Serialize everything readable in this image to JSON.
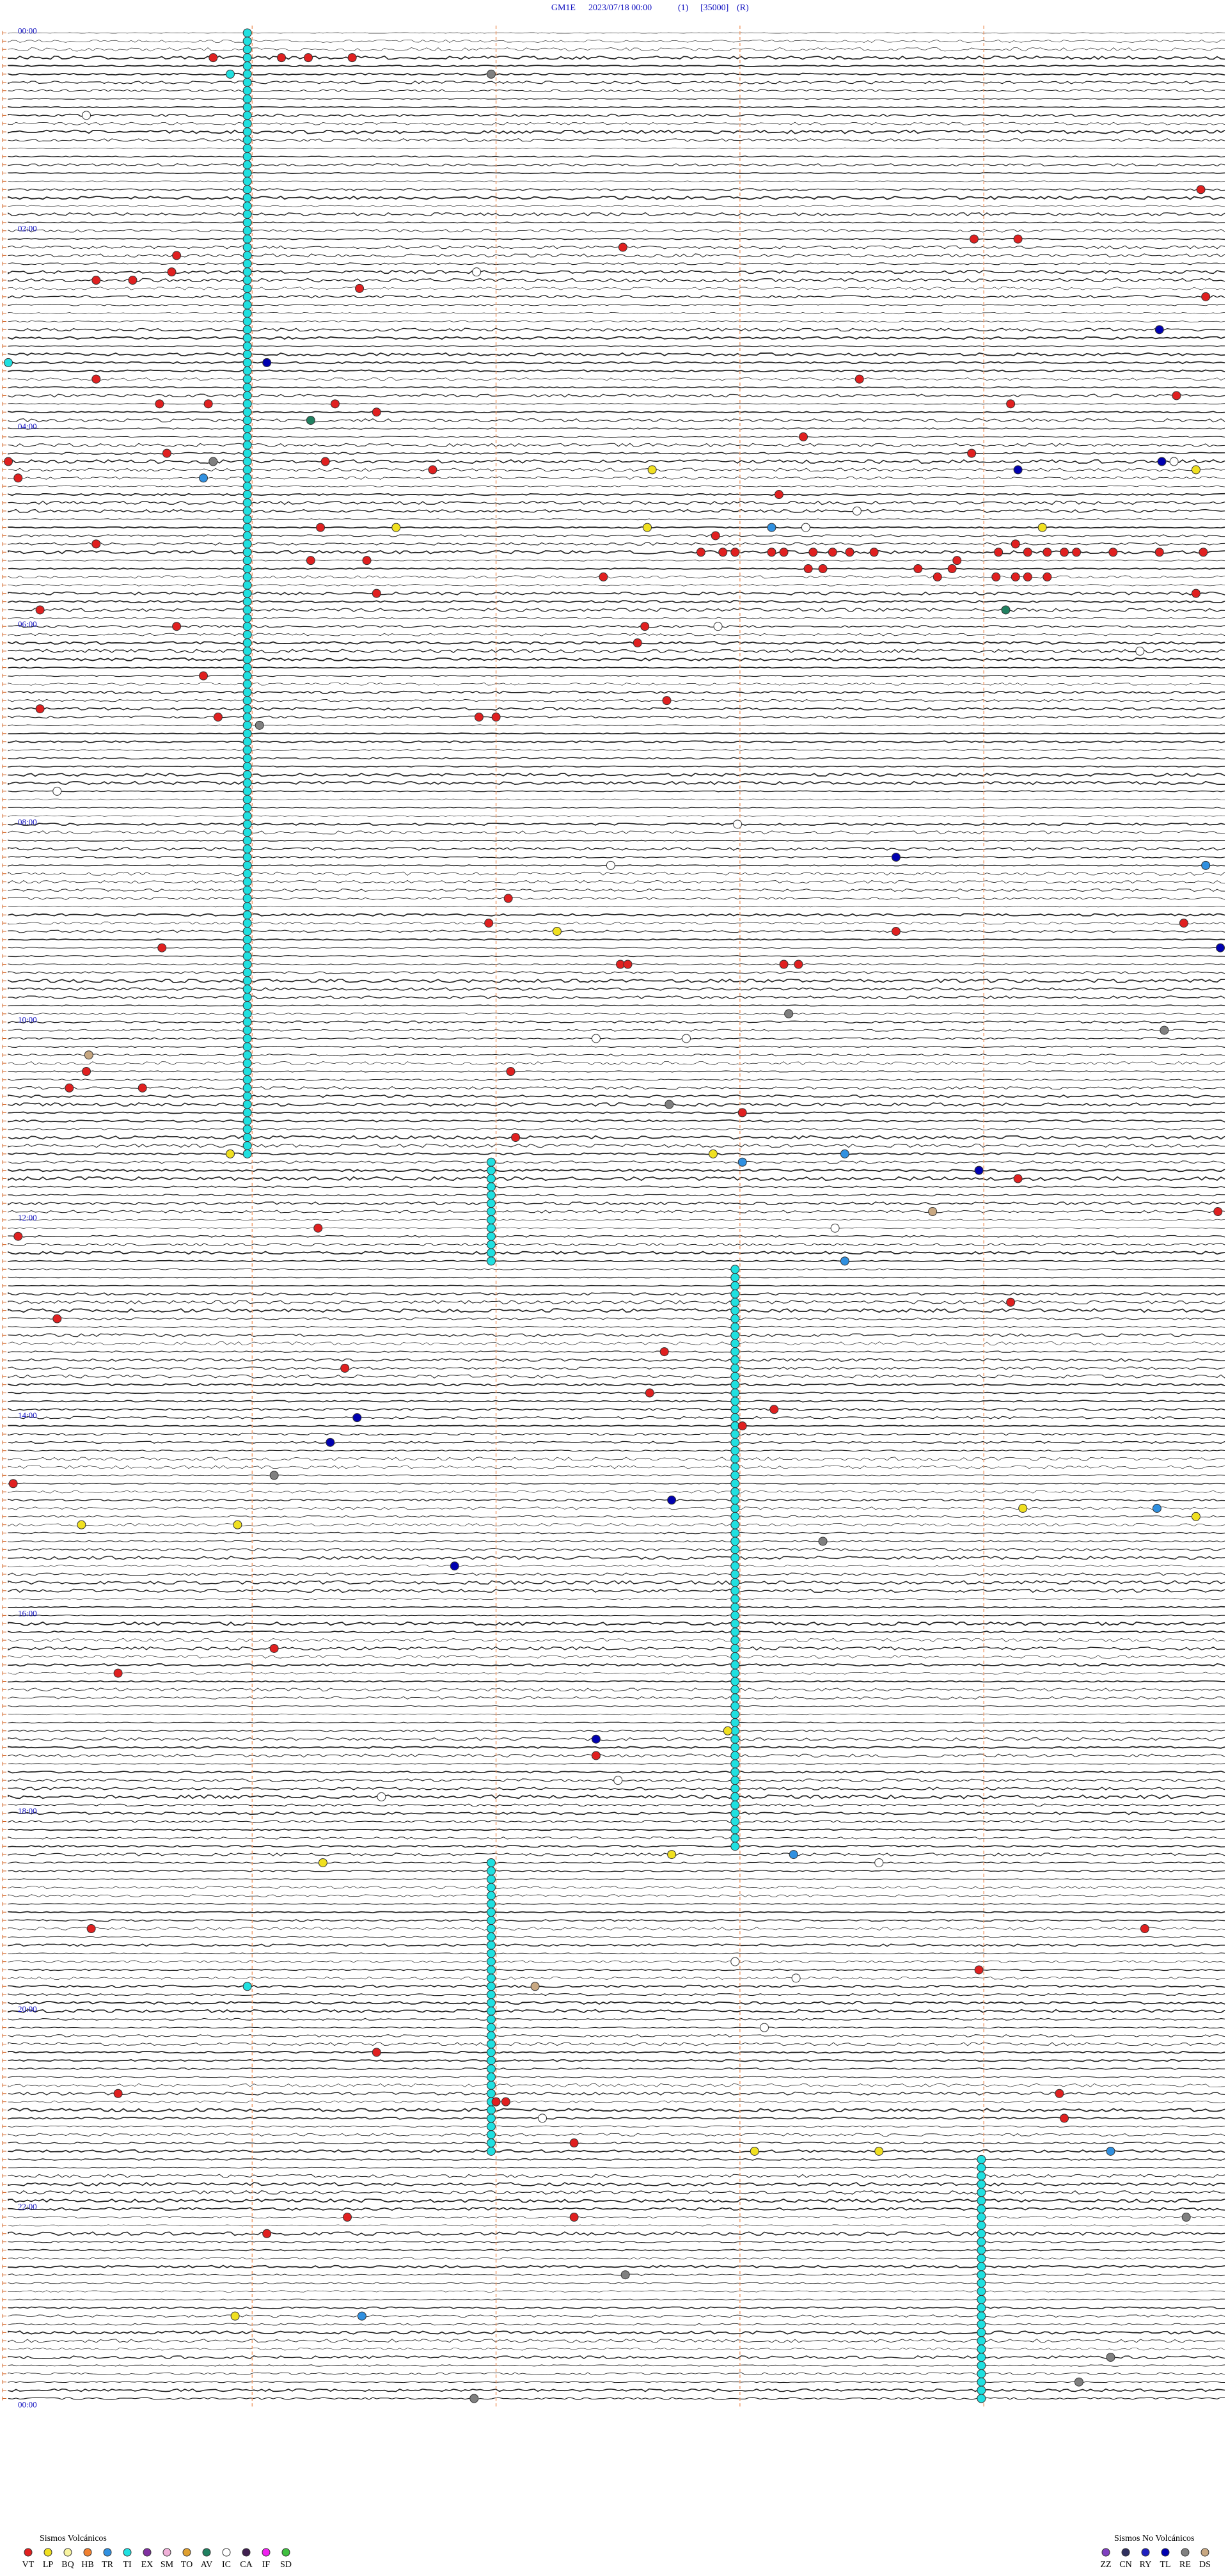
{
  "header": {
    "station": "GM1E",
    "datetime": "2023/07/18 00:00",
    "channel": "(1)",
    "scale": "[35000]",
    "mode": "(R)"
  },
  "hour_labels": [
    "00:00",
    "02:00",
    "04:00",
    "06:00",
    "08:00",
    "10:00",
    "12:00",
    "14:00",
    "16:00",
    "18:00",
    "20:00",
    "22:00",
    "00:00"
  ],
  "tremor": [
    {
      "code": "TI",
      "minute": 0.98,
      "from": 0,
      "to": 136
    },
    {
      "code": "TI",
      "minute": 1.98,
      "from": 137,
      "to": 149
    },
    {
      "code": "TI",
      "minute": 2.98,
      "from": 150,
      "to": 220
    },
    {
      "code": "TI",
      "minute": 1.98,
      "from": 222,
      "to": 257
    },
    {
      "code": "TI",
      "minute": 3.99,
      "from": 258,
      "to": 287
    }
  ],
  "events": [
    [
      "VT",
      3,
      0.84
    ],
    [
      "VT",
      3,
      1.12
    ],
    [
      "VT",
      3,
      1.23
    ],
    [
      "VT",
      3,
      1.41
    ],
    [
      "TI",
      5,
      0.91
    ],
    [
      "RE",
      5,
      1.98
    ],
    [
      "IC",
      10,
      0.32
    ],
    [
      "VT",
      19,
      4.89
    ],
    [
      "VT",
      25,
      3.96
    ],
    [
      "VT",
      25,
      4.14
    ],
    [
      "VT",
      26,
      2.52
    ],
    [
      "VT",
      27,
      0.69
    ],
    [
      "IC",
      29,
      1.92
    ],
    [
      "VT",
      29,
      0.67
    ],
    [
      "VT",
      30,
      0.36
    ],
    [
      "VT",
      30,
      0.51
    ],
    [
      "VT",
      31,
      1.44
    ],
    [
      "VT",
      32,
      4.91
    ],
    [
      "TL",
      36,
      4.72
    ],
    [
      "TI",
      40,
      0
    ],
    [
      "TL",
      40,
      1.06
    ],
    [
      "VT",
      42,
      0.36
    ],
    [
      "VT",
      42,
      3.49
    ],
    [
      "VT",
      44,
      4.79
    ],
    [
      "VT",
      45,
      0.62
    ],
    [
      "VT",
      45,
      0.82
    ],
    [
      "VT",
      45,
      1.34
    ],
    [
      "VT",
      45,
      4.11
    ],
    [
      "VT",
      46,
      1.51
    ],
    [
      "AV",
      47,
      1.24
    ],
    [
      "VT",
      49,
      3.26
    ],
    [
      "VT",
      51,
      0.65
    ],
    [
      "VT",
      51,
      3.95
    ],
    [
      "VT",
      52,
      0
    ],
    [
      "RE",
      52,
      0.84
    ],
    [
      "VT",
      52,
      1.3
    ],
    [
      "TL",
      52,
      4.73
    ],
    [
      "IC",
      52,
      4.78
    ],
    [
      "LP",
      53,
      2.64
    ],
    [
      "VT",
      53,
      1.74
    ],
    [
      "TL",
      53,
      4.14
    ],
    [
      "LP",
      53,
      4.87
    ],
    [
      "TR",
      54,
      0.8
    ],
    [
      "VT",
      54,
      0.04
    ],
    [
      "VT",
      56,
      3.16
    ],
    [
      "IC",
      58,
      3.48
    ],
    [
      "VT",
      60,
      1.28
    ],
    [
      "LP",
      60,
      1.59
    ],
    [
      "LP",
      60,
      2.62
    ],
    [
      "TR",
      60,
      3.13
    ],
    [
      "IC",
      60,
      3.27
    ],
    [
      "LP",
      60,
      4.24
    ],
    [
      "VT",
      61,
      2.9
    ],
    [
      "VT",
      62,
      0.36
    ],
    [
      "VT",
      62,
      4.13
    ],
    [
      "VT",
      63,
      2.84
    ],
    [
      "VT",
      63,
      2.93
    ],
    [
      "VT",
      63,
      2.98
    ],
    [
      "VT",
      63,
      3.13
    ],
    [
      "VT",
      63,
      3.18
    ],
    [
      "VT",
      63,
      3.3
    ],
    [
      "VT",
      63,
      3.38
    ],
    [
      "VT",
      63,
      3.45
    ],
    [
      "VT",
      63,
      3.55
    ],
    [
      "VT",
      63,
      4.06
    ],
    [
      "VT",
      63,
      4.18
    ],
    [
      "VT",
      63,
      4.26
    ],
    [
      "VT",
      63,
      4.33
    ],
    [
      "VT",
      63,
      4.38
    ],
    [
      "VT",
      63,
      4.53
    ],
    [
      "VT",
      63,
      4.72
    ],
    [
      "VT",
      63,
      4.9
    ],
    [
      "VT",
      64,
      1.24
    ],
    [
      "VT",
      64,
      1.47
    ],
    [
      "VT",
      64,
      3.89
    ],
    [
      "VT",
      65,
      3.28
    ],
    [
      "VT",
      65,
      3.34
    ],
    [
      "VT",
      65,
      3.73
    ],
    [
      "VT",
      65,
      3.87
    ],
    [
      "VT",
      66,
      3.81
    ],
    [
      "VT",
      66,
      2.44
    ],
    [
      "VT",
      66,
      4.05
    ],
    [
      "VT",
      66,
      4.13
    ],
    [
      "VT",
      66,
      4.18
    ],
    [
      "VT",
      66,
      4.26
    ],
    [
      "VT",
      68,
      1.51
    ],
    [
      "VT",
      68,
      4.87
    ],
    [
      "VT",
      70,
      0.13
    ],
    [
      "AV",
      70,
      4.09
    ],
    [
      "VT",
      72,
      0.69
    ],
    [
      "VT",
      72,
      2.61
    ],
    [
      "IC",
      72,
      2.91
    ],
    [
      "VT",
      74,
      2.58
    ],
    [
      "IC",
      75,
      4.64
    ],
    [
      "VT",
      78,
      0.8
    ],
    [
      "VT",
      81,
      2.7
    ],
    [
      "VT",
      82,
      0.13
    ],
    [
      "VT",
      83,
      0.86
    ],
    [
      "VT",
      83,
      1.93
    ],
    [
      "VT",
      83,
      2
    ],
    [
      "RE",
      84,
      1.03
    ],
    [
      "IC",
      92,
      0.2
    ],
    [
      "IC",
      96,
      2.99
    ],
    [
      "TL",
      100,
      3.64
    ],
    [
      "IC",
      101,
      2.47
    ],
    [
      "TR",
      101,
      4.91
    ],
    [
      "VT",
      105,
      2.05
    ],
    [
      "VT",
      108,
      1.97
    ],
    [
      "VT",
      108,
      4.82
    ],
    [
      "VT",
      109,
      3.64
    ],
    [
      "LP",
      109,
      2.25
    ],
    [
      "VT",
      111,
      0.63
    ],
    [
      "TL",
      111,
      4.97
    ],
    [
      "VT",
      113,
      2.51
    ],
    [
      "VT",
      113,
      2.54
    ],
    [
      "VT",
      113,
      3.18
    ],
    [
      "VT",
      113,
      3.24
    ],
    [
      "RE",
      119,
      3.2
    ],
    [
      "RE",
      121,
      4.74
    ],
    [
      "IC",
      122,
      2.41
    ],
    [
      "IC",
      122,
      2.78
    ],
    [
      "DS",
      124,
      0.33
    ],
    [
      "VT",
      126,
      0.32
    ],
    [
      "VT",
      126,
      2.06
    ],
    [
      "VT",
      128,
      0.25
    ],
    [
      "VT",
      128,
      0.55
    ],
    [
      "RE",
      130,
      2.71
    ],
    [
      "VT",
      131,
      3.01
    ],
    [
      "VT",
      134,
      2.08
    ],
    [
      "LP",
      136,
      0.91
    ],
    [
      "LP",
      136,
      2.89
    ],
    [
      "TR",
      136,
      3.43
    ],
    [
      "TR",
      137,
      3.01
    ],
    [
      "TL",
      138,
      3.98
    ],
    [
      "VT",
      139,
      4.14
    ],
    [
      "DS",
      143,
      3.79
    ],
    [
      "VT",
      143,
      4.96
    ],
    [
      "IC",
      145,
      3.39
    ],
    [
      "VT",
      145,
      1.27
    ],
    [
      "VT",
      146,
      0.04
    ],
    [
      "TR",
      149,
      3.43
    ],
    [
      "VT",
      154,
      4.11
    ],
    [
      "VT",
      156,
      0.2
    ],
    [
      "VT",
      160,
      2.69
    ],
    [
      "VT",
      162,
      1.38
    ],
    [
      "VT",
      165,
      2.63
    ],
    [
      "VT",
      167,
      3.14
    ],
    [
      "TL",
      168,
      1.43
    ],
    [
      "VT",
      169,
      3.01
    ],
    [
      "TL",
      171,
      1.32
    ],
    [
      "RE",
      175,
      1.09
    ],
    [
      "VT",
      176,
      0.02
    ],
    [
      "TL",
      178,
      2.72
    ],
    [
      "LP",
      179,
      4.16
    ],
    [
      "TR",
      179,
      4.71
    ],
    [
      "LP",
      180,
      4.87
    ],
    [
      "LP",
      181,
      0.3
    ],
    [
      "LP",
      181,
      0.94
    ],
    [
      "RE",
      183,
      3.34
    ],
    [
      "TL",
      186,
      1.83
    ],
    [
      "VT",
      196,
      1.09
    ],
    [
      "VT",
      199,
      0.45
    ],
    [
      "LP",
      206,
      2.95
    ],
    [
      "TL",
      207,
      2.41
    ],
    [
      "VT",
      209,
      2.41
    ],
    [
      "IC",
      212,
      2.5
    ],
    [
      "IC",
      214,
      1.53
    ],
    [
      "LP",
      221,
      2.72
    ],
    [
      "TR",
      221,
      3.22
    ],
    [
      "LP",
      222,
      1.29
    ],
    [
      "IC",
      222,
      3.57
    ],
    [
      "VT",
      230,
      0.34
    ],
    [
      "VT",
      230,
      4.66
    ],
    [
      "IC",
      234,
      2.98
    ],
    [
      "VT",
      235,
      3.98
    ],
    [
      "IC",
      236,
      3.23
    ],
    [
      "TI",
      237,
      0.98
    ],
    [
      "DS",
      237,
      2.16
    ],
    [
      "IC",
      242,
      3.1
    ],
    [
      "VT",
      245,
      1.51
    ],
    [
      "VT",
      250,
      0.45
    ],
    [
      "VT",
      250,
      4.31
    ],
    [
      "VT",
      251,
      2
    ],
    [
      "VT",
      251,
      2.04
    ],
    [
      "IC",
      253,
      2.19
    ],
    [
      "VT",
      253,
      4.33
    ],
    [
      "VT",
      256,
      2.32
    ],
    [
      "LP",
      257,
      3.06
    ],
    [
      "LP",
      257,
      3.57
    ],
    [
      "TR",
      257,
      4.52
    ],
    [
      "VT",
      265,
      1.39
    ],
    [
      "VT",
      265,
      2.32
    ],
    [
      "RE",
      265,
      4.83
    ],
    [
      "VT",
      267,
      1.06
    ],
    [
      "RE",
      272,
      2.53
    ],
    [
      "LP",
      277,
      0.93
    ],
    [
      "TR",
      277,
      1.45
    ],
    [
      "RE",
      282,
      4.52
    ],
    [
      "RE",
      285,
      4.39
    ],
    [
      "RE",
      287,
      1.91
    ]
  ],
  "legend": {
    "volcanic_title": "Sismos Volcánicos",
    "volcanic": [
      {
        "code": "VT",
        "color": "#e02020"
      },
      {
        "code": "LP",
        "color": "#f0e020"
      },
      {
        "code": "BQ",
        "color": "#f8f4a0"
      },
      {
        "code": "HB",
        "color": "#f08030"
      },
      {
        "code": "TR",
        "color": "#3090e0"
      },
      {
        "code": "TI",
        "color": "#20e0e0"
      },
      {
        "code": "EX",
        "color": "#8030a0"
      },
      {
        "code": "SM",
        "color": "#f0b0d8"
      },
      {
        "code": "TO",
        "color": "#e0a030"
      },
      {
        "code": "AV",
        "color": "#208060"
      },
      {
        "code": "IC",
        "color": "#ffffff"
      },
      {
        "code": "CA",
        "color": "#402050"
      },
      {
        "code": "IF",
        "color": "#f020f0"
      },
      {
        "code": "SD",
        "color": "#40c040"
      }
    ],
    "non_volcanic_title": "Sismos No Volcánicos",
    "non_volcanic": [
      {
        "code": "ZZ",
        "color": "#8040c0"
      },
      {
        "code": "CN",
        "color": "#303060"
      },
      {
        "code": "RY",
        "color": "#2020c0"
      },
      {
        "code": "TL",
        "color": "#0000b0"
      },
      {
        "code": "RE",
        "color": "#808080"
      },
      {
        "code": "DS",
        "color": "#c8a882"
      }
    ]
  }
}
